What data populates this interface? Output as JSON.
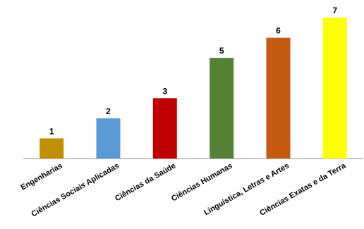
{
  "chart_data": {
    "type": "bar",
    "categories": [
      "Engenharias",
      "Ciências Sociais Aplicadas",
      "Ciências da Saúde",
      "Ciências Humanas",
      "Linguística, Letras e Artes",
      "Ciências Exatas e da Terra"
    ],
    "values": [
      1,
      2,
      3,
      5,
      6,
      7
    ],
    "data_labels": [
      "1",
      "2",
      "3",
      "5",
      "6",
      "7"
    ],
    "colors": [
      "#c09000",
      "#5b9bd5",
      "#c00000",
      "#548235",
      "#c55a11",
      "#ffff00"
    ],
    "title": "",
    "xlabel": "",
    "ylabel": "",
    "ylim": [
      0,
      7
    ],
    "grid": false,
    "legend": "none"
  }
}
